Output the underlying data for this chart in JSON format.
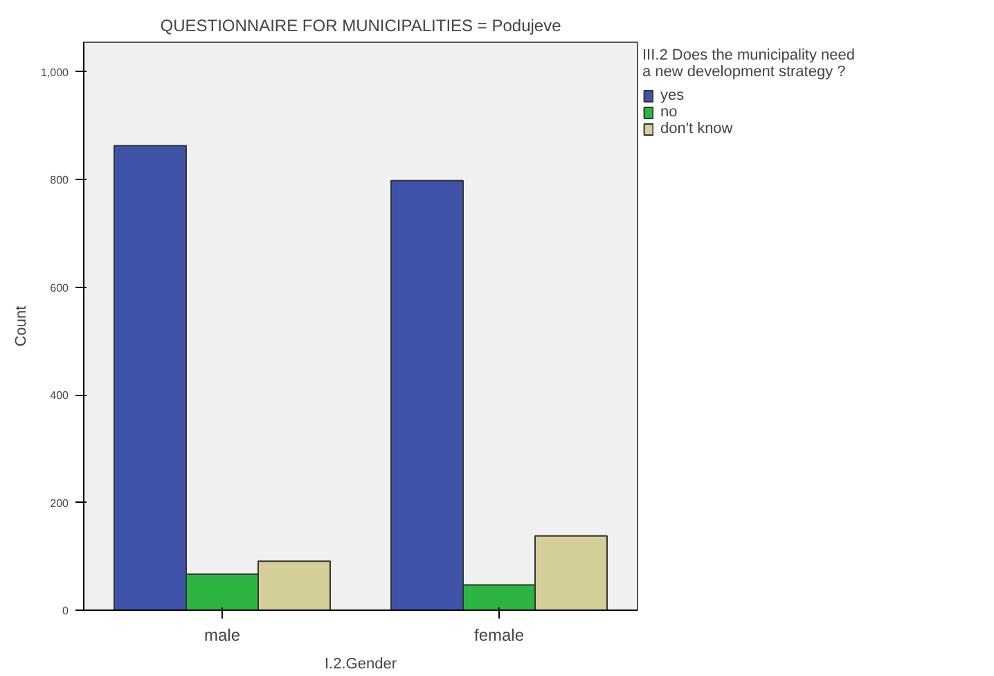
{
  "chart_data": {
    "type": "bar",
    "title": "QUESTIONNAIRE FOR MUNICIPALITIES = Podujeve",
    "xlabel": "I.2.Gender",
    "ylabel": "Count",
    "legend_title": "III.2 Does the municipality need a new development strategy ?",
    "categories": [
      "male",
      "female"
    ],
    "series": [
      {
        "name": "yes",
        "color": "#3f54a8",
        "values": [
          863,
          798
        ]
      },
      {
        "name": "no",
        "color": "#2db543",
        "values": [
          67,
          47
        ]
      },
      {
        "name": "don't know",
        "color": "#d4cf98",
        "values": [
          91,
          138
        ]
      }
    ],
    "ylim": [
      0,
      1055
    ],
    "yticks": [
      0,
      200,
      400,
      600,
      800,
      {
        "value": 1000,
        "label": "1,000"
      }
    ],
    "grid": false,
    "legend": "right"
  }
}
